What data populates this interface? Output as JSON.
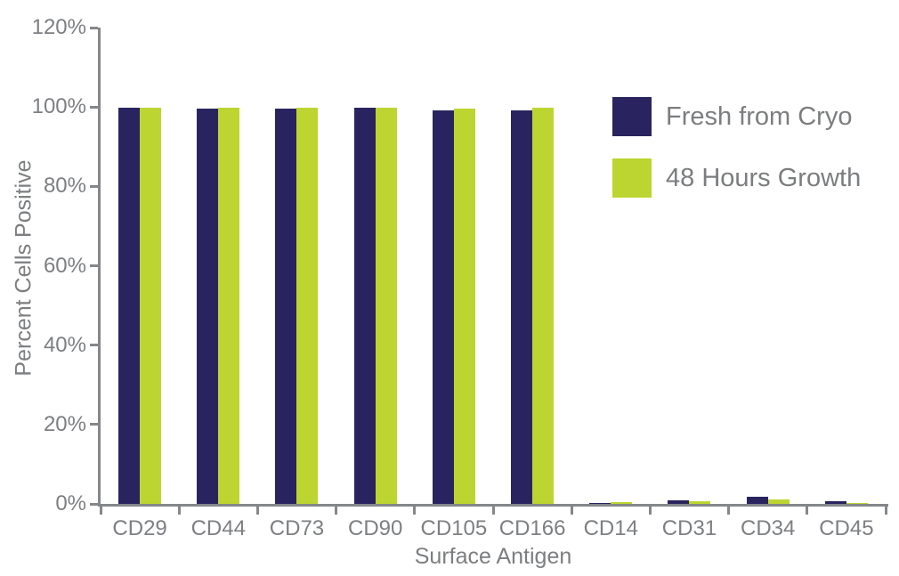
{
  "chart_data": {
    "type": "bar",
    "title": "",
    "xlabel": "Surface Antigen",
    "ylabel": "Percent Cells Positive",
    "categories": [
      "CD29",
      "CD44",
      "CD73",
      "CD90",
      "CD105",
      "CD166",
      "CD14",
      "CD31",
      "CD34",
      "CD45"
    ],
    "series": [
      {
        "name": "Fresh from Cryo",
        "color": "#29245f",
        "values": [
          99.8,
          99.7,
          99.6,
          99.8,
          99.2,
          99.1,
          0.3,
          0.9,
          1.8,
          0.7
        ]
      },
      {
        "name": "48 Hours Growth",
        "color": "#bdd531",
        "values": [
          99.8,
          99.8,
          99.8,
          99.8,
          99.5,
          99.9,
          0.5,
          0.7,
          1.2,
          0.2
        ]
      }
    ],
    "ylim": [
      0,
      120
    ],
    "ytick_step": 20,
    "ytick_labels": [
      "0%",
      "20%",
      "40%",
      "60%",
      "80%",
      "100%",
      "120%"
    ],
    "legend_position": "upper-right-inside",
    "grid": false,
    "axis_color": "#85878a",
    "text_color": "#7d7f82",
    "background_color": "#ffffff"
  }
}
